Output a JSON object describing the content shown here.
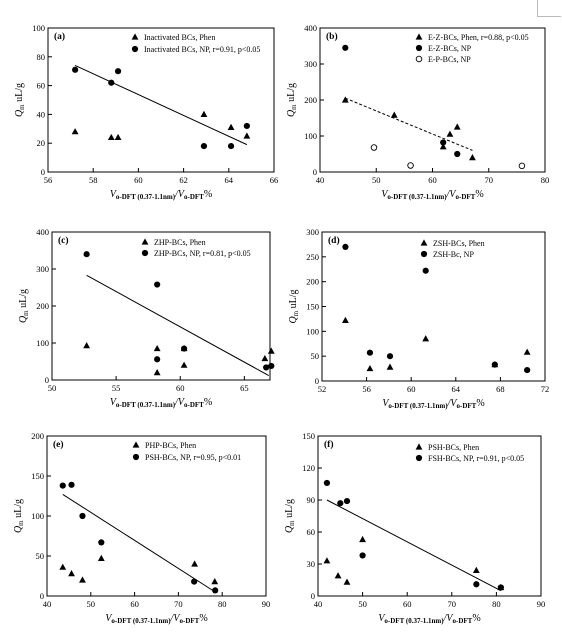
{
  "chart_data": [
    {
      "type": "scatter",
      "panel": "(a)",
      "xlabel": {
        "main": "V",
        "sub": "o-DFT (0.37-1.1nm)",
        "mid": "/V",
        "sub2": "o-DFT",
        "tail": "%"
      },
      "ylabel": {
        "main": "Q",
        "sub": "m",
        "tail": " uL/g"
      },
      "xlim": [
        56,
        66
      ],
      "xticks": [
        56,
        58,
        60,
        62,
        64,
        66
      ],
      "ylim": [
        0,
        100
      ],
      "yticks": [
        0,
        20,
        40,
        60,
        80,
        100
      ],
      "legend": "top-right",
      "series": [
        {
          "name": "Inactivated BCs, Phen",
          "marker": "triangle",
          "points": [
            [
              57.2,
              28
            ],
            [
              58.8,
              24
            ],
            [
              59.1,
              24
            ],
            [
              62.9,
              40
            ],
            [
              64.1,
              31
            ],
            [
              64.8,
              25
            ]
          ]
        },
        {
          "name": "Inactivated BCs, NP, r=0.91, p<0.05",
          "marker": "circle",
          "points": [
            [
              57.2,
              71
            ],
            [
              58.8,
              62
            ],
            [
              59.1,
              70
            ],
            [
              62.9,
              18
            ],
            [
              64.1,
              18
            ],
            [
              64.8,
              32
            ]
          ]
        }
      ],
      "fit": [
        [
          57.2,
          74
        ],
        [
          64.8,
          19
        ]
      ]
    },
    {
      "type": "scatter",
      "panel": "(b)",
      "xlabel": {
        "main": "V",
        "sub": "o-DFT (0.37-1.1nm)",
        "mid": "/V",
        "sub2": "o-DFT",
        "tail": "%"
      },
      "ylabel": {
        "main": "Q",
        "sub": "m",
        "tail": " uL/g"
      },
      "xlim": [
        40,
        80
      ],
      "xticks": [
        40,
        50,
        60,
        70,
        80
      ],
      "ylim": [
        0,
        400
      ],
      "yticks": [
        0,
        100,
        200,
        300,
        400
      ],
      "legend": "top-right",
      "series": [
        {
          "name": "E-Z-BCs, Phen, r=0.88, p<0.05",
          "marker": "triangle",
          "points": [
            [
              44.5,
              200
            ],
            [
              53.2,
              158
            ],
            [
              61.9,
              70
            ],
            [
              63.1,
              105
            ],
            [
              64.4,
              125
            ],
            [
              67.1,
              40
            ]
          ]
        },
        {
          "name": "E-Z-BCs, NP",
          "marker": "circle",
          "points": [
            [
              44.5,
              345
            ],
            [
              61.9,
              82
            ],
            [
              64.4,
              50
            ]
          ]
        },
        {
          "name": "E-P-BCs, NP",
          "marker": "open-circle",
          "points": [
            [
              49.6,
              68
            ],
            [
              56.1,
              18
            ],
            [
              75.9,
              17
            ]
          ]
        }
      ],
      "fit": [
        [
          44.5,
          205
        ],
        [
          67.1,
          60
        ]
      ]
    },
    {
      "type": "scatter",
      "panel": "(c)",
      "xlabel": {
        "main": "V",
        "sub": "o-DFT (0.37-1.1nm)",
        "mid": "/V",
        "sub2": "o-DFT",
        "tail": "%"
      },
      "ylabel": {
        "main": "Q",
        "sub": "m",
        "tail": " uL/g"
      },
      "xlim": [
        50,
        67
      ],
      "xticks": [
        50,
        55,
        60,
        65
      ],
      "ylim": [
        0,
        400
      ],
      "yticks": [
        0,
        100,
        200,
        300,
        400
      ],
      "legend": "top-right",
      "series": [
        {
          "name": "ZHP-BCs, Phen",
          "marker": "triangle",
          "points": [
            [
              52.7,
              93
            ],
            [
              58.2,
              85
            ],
            [
              58.2,
              20
            ],
            [
              60.3,
              85
            ],
            [
              60.3,
              40
            ],
            [
              66.6,
              58
            ],
            [
              67.1,
              78
            ]
          ]
        },
        {
          "name": "ZHP-BCs, NP, r=0.81, p<0.05",
          "marker": "circle",
          "points": [
            [
              52.7,
              340
            ],
            [
              58.2,
              258
            ],
            [
              58.2,
              56
            ],
            [
              60.3,
              85
            ],
            [
              66.7,
              34
            ],
            [
              67.1,
              38
            ]
          ]
        }
      ],
      "fit": [
        [
          52.7,
          283
        ],
        [
          66.9,
          12
        ]
      ]
    },
    {
      "type": "scatter",
      "panel": "(d)",
      "xlabel": {
        "main": "V",
        "sub": "o-DFT (0.37-1.1nm)",
        "mid": "/V",
        "sub2": "o-DFT",
        "tail": "%"
      },
      "ylabel": {
        "main": "Q",
        "sub": "m",
        "tail": " uL/g"
      },
      "xlim": [
        52,
        72
      ],
      "xticks": [
        52,
        56,
        60,
        64,
        68,
        72
      ],
      "ylim": [
        0,
        300
      ],
      "yticks": [
        0,
        50,
        100,
        150,
        200,
        250,
        300
      ],
      "legend": "top-right",
      "series": [
        {
          "name": "ZSH-BCs, Phen",
          "marker": "triangle",
          "points": [
            [
              54.1,
              122
            ],
            [
              56.3,
              25
            ],
            [
              58.1,
              28
            ],
            [
              61.3,
              85
            ],
            [
              67.5,
              33
            ],
            [
              70.4,
              58
            ]
          ]
        },
        {
          "name": "ZSH-Bc, NP",
          "marker": "circle",
          "points": [
            [
              54.1,
              270
            ],
            [
              56.3,
              57
            ],
            [
              58.1,
              50
            ],
            [
              61.3,
              222
            ],
            [
              67.5,
              33
            ],
            [
              70.4,
              22
            ]
          ]
        }
      ]
    },
    {
      "type": "scatter",
      "panel": "(e)",
      "xlabel": {
        "main": "V",
        "sub": "o-DFT (0.37-1.1nm)",
        "mid": "/V",
        "sub2": "o-DFT",
        "tail": "%"
      },
      "ylabel": {
        "main": "Q",
        "sub": "m",
        "tail": " uL/g"
      },
      "xlim": [
        40,
        90
      ],
      "xticks": [
        40,
        50,
        60,
        70,
        80,
        90
      ],
      "ylim": [
        0,
        200
      ],
      "yticks": [
        0,
        50,
        100,
        150,
        200
      ],
      "legend": "top-right",
      "series": [
        {
          "name": "PHP-BCs, Phen",
          "marker": "triangle",
          "points": [
            [
              43.6,
              36
            ],
            [
              45.6,
              28
            ],
            [
              48.1,
              20
            ],
            [
              52.4,
              47
            ],
            [
              73.7,
              40
            ],
            [
              78.3,
              18
            ]
          ]
        },
        {
          "name": "PSH-BCs, NP, r=0.95, p<0.01",
          "marker": "circle",
          "points": [
            [
              43.6,
              138
            ],
            [
              45.6,
              139
            ],
            [
              48.1,
              100
            ],
            [
              52.4,
              67
            ],
            [
              73.6,
              18
            ],
            [
              78.4,
              7
            ]
          ]
        }
      ],
      "fit": [
        [
          43.6,
          127
        ],
        [
          78.4,
          5
        ]
      ]
    },
    {
      "type": "scatter",
      "panel": "(f)",
      "xlabel": {
        "main": "V",
        "sub": "o-DFT (0.37-1.1nm)",
        "mid": "/V",
        "sub2": "o-DFT",
        "tail": "%"
      },
      "ylabel": {
        "main": "Q",
        "sub": "m",
        "tail": " uL/g"
      },
      "xlim": [
        40,
        90
      ],
      "xticks": [
        40,
        50,
        60,
        70,
        80,
        90
      ],
      "ylim": [
        0,
        150
      ],
      "yticks": [
        0,
        30,
        60,
        90,
        120,
        150
      ],
      "legend": "top-right",
      "series": [
        {
          "name": "PSH-BCs, Phen",
          "marker": "triangle",
          "points": [
            [
              42,
              33
            ],
            [
              44.5,
              19
            ],
            [
              46.5,
              13
            ],
            [
              50,
              53
            ],
            [
              75.5,
              24
            ],
            [
              81,
              8
            ]
          ]
        },
        {
          "name": "FSH-BCs, NP, r=0.91, p<0.05",
          "marker": "circle",
          "points": [
            [
              42,
              106
            ],
            [
              45,
              87
            ],
            [
              46.5,
              89
            ],
            [
              50,
              38
            ],
            [
              75.5,
              11
            ],
            [
              81,
              8
            ]
          ]
        }
      ],
      "fit": [
        [
          42,
          90
        ],
        [
          81,
          5
        ]
      ]
    }
  ]
}
